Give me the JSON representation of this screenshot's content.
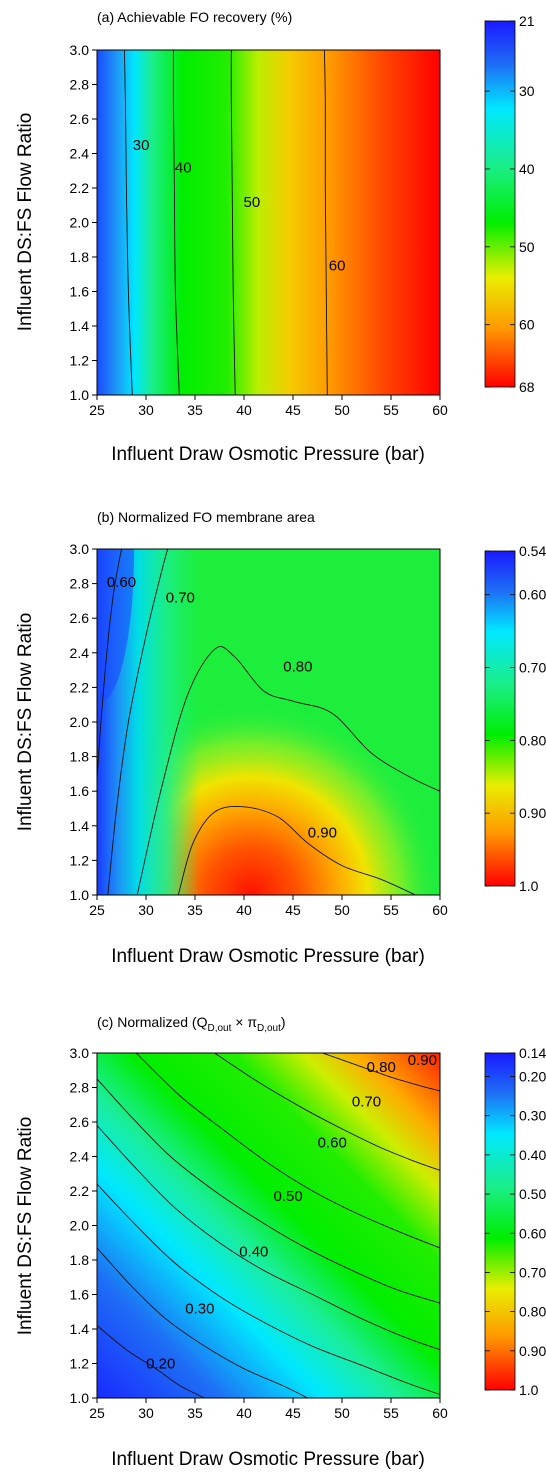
{
  "chart_data": [
    {
      "type": "heatmap",
      "title": "(a) Achievable FO recovery (%)",
      "xlabel": "Influent Draw Osmotic Pressure  (bar)",
      "ylabel": "Influent DS:FS Flow Ratio",
      "xlim": [
        25,
        60
      ],
      "ylim": [
        1.0,
        3.0
      ],
      "x_ticks": [
        "25",
        "30",
        "35",
        "40",
        "45",
        "50",
        "55",
        "60"
      ],
      "y_ticks": [
        "1.0",
        "1.2",
        "1.4",
        "1.6",
        "1.8",
        "2.0",
        "2.2",
        "2.4",
        "2.6",
        "2.8",
        "3.0"
      ],
      "colorbar": {
        "ticks": [
          "21",
          "30",
          "40",
          "50",
          "60",
          "68"
        ],
        "min": 21,
        "max": 68,
        "reversed": false
      },
      "contours": [
        {
          "label": "30",
          "level": 30,
          "points": [
            [
              28.6,
              1.0
            ],
            [
              28.2,
              1.6
            ],
            [
              28.0,
              2.2
            ],
            [
              27.9,
              2.7
            ],
            [
              27.8,
              3.0
            ]
          ],
          "label_at": [
            29.5,
            2.45
          ]
        },
        {
          "label": "40",
          "level": 40,
          "points": [
            [
              33.4,
              1.0
            ],
            [
              33.0,
              1.6
            ],
            [
              32.9,
              2.2
            ],
            [
              32.8,
              2.7
            ],
            [
              32.8,
              3.0
            ]
          ],
          "label_at": [
            33.8,
            2.32
          ]
        },
        {
          "label": "50",
          "level": 50,
          "points": [
            [
              39.1,
              1.0
            ],
            [
              38.9,
              1.6
            ],
            [
              38.8,
              2.2
            ],
            [
              38.7,
              2.7
            ],
            [
              38.7,
              3.0
            ]
          ],
          "label_at": [
            40.8,
            2.12
          ]
        },
        {
          "label": "60",
          "level": 60,
          "points": [
            [
              48.5,
              1.0
            ],
            [
              48.4,
              1.6
            ],
            [
              48.3,
              2.2
            ],
            [
              48.3,
              2.7
            ],
            [
              48.2,
              3.0
            ]
          ],
          "label_at": [
            49.5,
            1.75
          ]
        }
      ]
    },
    {
      "type": "heatmap",
      "title": "(b) Normalized FO membrane area",
      "xlabel": "Influent Draw Osmotic Pressure  (bar)",
      "ylabel": "Influent DS:FS Flow Ratio",
      "xlim": [
        25,
        60
      ],
      "ylim": [
        1.0,
        3.0
      ],
      "x_ticks": [
        "25",
        "30",
        "35",
        "40",
        "45",
        "50",
        "55",
        "60"
      ],
      "y_ticks": [
        "1.0",
        "1.2",
        "1.4",
        "1.6",
        "1.8",
        "2.0",
        "2.2",
        "2.4",
        "2.6",
        "2.8",
        "3.0"
      ],
      "colorbar": {
        "ticks": [
          "0.54",
          "0.60",
          "0.70",
          "0.80",
          "0.90",
          "1.0"
        ],
        "min": 0.54,
        "max": 1.0,
        "reversed": false
      },
      "contours": [
        {
          "label": "0.60",
          "level": 0.6,
          "points": [
            [
              25.0,
              1.67
            ],
            [
              25.4,
              2.0
            ],
            [
              26.0,
              2.4
            ],
            [
              26.7,
              2.75
            ],
            [
              27.5,
              3.0
            ]
          ],
          "label_at": [
            27.5,
            2.81
          ]
        },
        {
          "label": "0.70",
          "level": 0.7,
          "points": [
            [
              26.1,
              1.0
            ],
            [
              27.0,
              1.5
            ],
            [
              28.2,
              2.0
            ],
            [
              30.0,
              2.5
            ],
            [
              31.5,
              2.85
            ],
            [
              32.2,
              3.0
            ]
          ],
          "label_at": [
            33.5,
            2.72
          ]
        },
        {
          "label": "0.80",
          "level": 0.8,
          "points": [
            [
              29.1,
              1.0
            ],
            [
              31.5,
              1.6
            ],
            [
              34.2,
              2.15
            ],
            [
              37.0,
              2.42
            ],
            [
              39.0,
              2.38
            ],
            [
              42.0,
              2.18
            ],
            [
              45.0,
              2.12
            ],
            [
              49.0,
              2.05
            ],
            [
              53.0,
              1.82
            ],
            [
              57.0,
              1.68
            ],
            [
              60.0,
              1.6
            ]
          ],
          "label_at": [
            45.5,
            2.32
          ]
        },
        {
          "label": "0.90",
          "level": 0.9,
          "points": [
            [
              33.3,
              1.0
            ],
            [
              34.8,
              1.3
            ],
            [
              37.0,
              1.48
            ],
            [
              40.0,
              1.51
            ],
            [
              43.5,
              1.45
            ],
            [
              46.5,
              1.3
            ],
            [
              50.0,
              1.17
            ],
            [
              54.0,
              1.09
            ],
            [
              57.5,
              1.0
            ]
          ],
          "label_at": [
            48.0,
            1.36
          ]
        }
      ]
    },
    {
      "type": "heatmap",
      "title": "(c) Normalized (Q",
      "title_sub_1": "D,out",
      "title_mid": " × π",
      "title_sub_2": "D,out",
      "title_end": ")",
      "xlabel": "Influent Draw Osmotic Pressure  (bar)",
      "ylabel": "Influent DS:FS Flow Ratio",
      "xlim": [
        25,
        60
      ],
      "ylim": [
        1.0,
        3.0
      ],
      "x_ticks": [
        "25",
        "30",
        "35",
        "40",
        "45",
        "50",
        "55",
        "60"
      ],
      "y_ticks": [
        "1.0",
        "1.2",
        "1.4",
        "1.6",
        "1.8",
        "2.0",
        "2.2",
        "2.4",
        "2.6",
        "2.8",
        "3.0"
      ],
      "colorbar": {
        "ticks": [
          "0.14",
          "0.20",
          "0.30",
          "0.40",
          "0.50",
          "0.60",
          "0.70",
          "0.80",
          "0.90",
          "1.0"
        ],
        "min": 0.14,
        "max": 1.0,
        "reversed": false
      },
      "contours": [
        {
          "label": "0.20",
          "level": 0.2,
          "points": [
            [
              25.0,
              1.42
            ],
            [
              28.0,
              1.28
            ],
            [
              31.0,
              1.17
            ],
            [
              33.5,
              1.07
            ],
            [
              36.0,
              1.0
            ]
          ],
          "label_at": [
            31.5,
            1.2
          ]
        },
        {
          "label": "0.30",
          "level": 0.3,
          "points": [
            [
              25.0,
              1.87
            ],
            [
              28.5,
              1.65
            ],
            [
              32.0,
              1.46
            ],
            [
              36.0,
              1.3
            ],
            [
              40.0,
              1.17
            ],
            [
              44.0,
              1.07
            ],
            [
              46.5,
              1.0
            ]
          ],
          "label_at": [
            35.5,
            1.52
          ]
        },
        {
          "label": "0.40",
          "level": 0.4,
          "points": [
            [
              25.0,
              2.24
            ],
            [
              29.0,
              2.0
            ],
            [
              33.0,
              1.78
            ],
            [
              37.5,
              1.59
            ],
            [
              42.0,
              1.44
            ],
            [
              47.0,
              1.3
            ],
            [
              52.0,
              1.19
            ],
            [
              56.5,
              1.09
            ],
            [
              60.0,
              1.02
            ]
          ],
          "label_at": [
            41.0,
            1.85
          ]
        },
        {
          "label": "0.50",
          "level": 0.5,
          "points": [
            [
              25.0,
              2.58
            ],
            [
              29.0,
              2.33
            ],
            [
              33.0,
              2.1
            ],
            [
              37.5,
              1.9
            ],
            [
              42.0,
              1.74
            ],
            [
              47.0,
              1.6
            ],
            [
              52.0,
              1.46
            ],
            [
              56.5,
              1.35
            ],
            [
              60.0,
              1.28
            ]
          ],
          "label_at": [
            44.5,
            2.17
          ]
        },
        {
          "label": "0.60",
          "level": 0.6,
          "points": [
            [
              25.0,
              2.85
            ],
            [
              28.5,
              2.63
            ],
            [
              32.5,
              2.4
            ],
            [
              37.0,
              2.2
            ],
            [
              41.5,
              2.03
            ],
            [
              46.0,
              1.88
            ],
            [
              51.0,
              1.74
            ],
            [
              55.5,
              1.63
            ],
            [
              60.0,
              1.55
            ]
          ],
          "label_at": [
            49.0,
            2.48
          ]
        },
        {
          "label": "0.70",
          "level": 0.7,
          "points": [
            [
              29.0,
              3.0
            ],
            [
              33.5,
              2.75
            ],
            [
              38.0,
              2.55
            ],
            [
              42.5,
              2.36
            ],
            [
              47.0,
              2.2
            ],
            [
              51.5,
              2.07
            ],
            [
              56.0,
              1.96
            ],
            [
              60.0,
              1.87
            ]
          ],
          "label_at": [
            52.5,
            2.72
          ]
        },
        {
          "label": "0.80",
          "level": 0.8,
          "points": [
            [
              37.0,
              3.0
            ],
            [
              41.5,
              2.83
            ],
            [
              46.0,
              2.68
            ],
            [
              50.0,
              2.56
            ],
            [
              54.0,
              2.45
            ],
            [
              57.5,
              2.37
            ],
            [
              60.0,
              2.32
            ]
          ],
          "label_at": [
            54.0,
            2.92
          ]
        },
        {
          "label": "0.90",
          "level": 0.9,
          "points": [
            [
              48.0,
              3.0
            ],
            [
              51.5,
              2.93
            ],
            [
              55.0,
              2.86
            ],
            [
              58.0,
              2.81
            ],
            [
              60.0,
              2.78
            ]
          ],
          "label_at": [
            58.2,
            2.96
          ]
        }
      ]
    }
  ]
}
